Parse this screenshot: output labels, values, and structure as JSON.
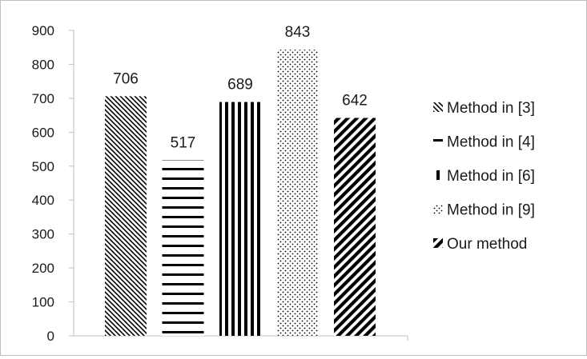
{
  "chart_data": {
    "type": "bar",
    "title": "",
    "xlabel": "",
    "ylabel": "",
    "ylim": [
      0,
      900
    ],
    "yticks": [
      0,
      100,
      200,
      300,
      400,
      500,
      600,
      700,
      800,
      900
    ],
    "grid": false,
    "legend_position": "right",
    "categories": [
      "Method in [3]",
      "Method in [4]",
      "Method in [6]",
      "Method in [9]",
      "Our method"
    ],
    "values": [
      706,
      517,
      689,
      843,
      642
    ],
    "data_labels": [
      "706",
      "517",
      "689",
      "843",
      "642"
    ],
    "series_style": [
      {
        "name": "Method in [3]",
        "pattern": "diagonal-backslash-hatch",
        "color": "#000000"
      },
      {
        "name": "Method in [4]",
        "pattern": "horizontal-stripes",
        "color": "#000000"
      },
      {
        "name": "Method in [6]",
        "pattern": "vertical-stripes",
        "color": "#000000"
      },
      {
        "name": "Method in [9]",
        "pattern": "dotted",
        "color": "#000000"
      },
      {
        "name": "Our method",
        "pattern": "wide-diagonal-stripes",
        "color": "#000000"
      }
    ]
  }
}
